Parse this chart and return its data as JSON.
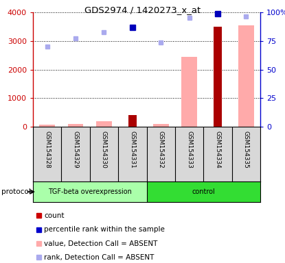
{
  "title": "GDS2974 / 1420273_x_at",
  "samples": [
    "GSM154328",
    "GSM154329",
    "GSM154330",
    "GSM154331",
    "GSM154332",
    "GSM154333",
    "GSM154334",
    "GSM154335"
  ],
  "groups": [
    "TGF-beta overexpression",
    "TGF-beta overexpression",
    "TGF-beta overexpression",
    "TGF-beta overexpression",
    "control",
    "control",
    "control",
    "control"
  ],
  "count_values": [
    null,
    null,
    null,
    400,
    null,
    null,
    3500,
    null
  ],
  "value_absent": [
    80,
    90,
    200,
    null,
    100,
    2450,
    null,
    3550
  ],
  "rank_absent_left": [
    2800,
    3100,
    3300,
    null,
    2950,
    3800,
    null,
    3850
  ],
  "percentile_present_left": [
    null,
    null,
    null,
    3480,
    null,
    null,
    3950,
    null
  ],
  "ylim_left": [
    0,
    4000
  ],
  "ylim_right": [
    0,
    100
  ],
  "yticks_left": [
    0,
    1000,
    2000,
    3000,
    4000
  ],
  "yticks_left_labels": [
    "0",
    "1000",
    "2000",
    "3000",
    "4000"
  ],
  "yticks_right": [
    0,
    25,
    50,
    75,
    100
  ],
  "yticks_right_labels": [
    "0",
    "25",
    "50",
    "75",
    "100%"
  ],
  "left_axis_color": "#cc0000",
  "right_axis_color": "#0000cc",
  "group_colors": {
    "TGF-beta overexpression": "#aaffaa",
    "control": "#33dd33"
  },
  "sample_bg_color": "#d8d8d8",
  "legend_items": [
    {
      "label": "count",
      "color": "#cc0000"
    },
    {
      "label": "percentile rank within the sample",
      "color": "#0000cc"
    },
    {
      "label": "value, Detection Call = ABSENT",
      "color": "#ffaaaa"
    },
    {
      "label": "rank, Detection Call = ABSENT",
      "color": "#aaaaee"
    }
  ]
}
